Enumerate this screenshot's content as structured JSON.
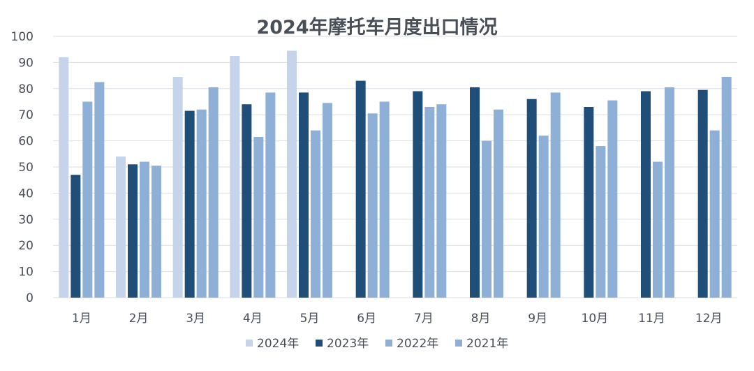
{
  "chart_data": {
    "type": "bar",
    "title": "2024年摩托车月度出口情况",
    "xlabel": "",
    "ylabel": "",
    "ylim": [
      0,
      100
    ],
    "yticks": [
      0,
      10,
      20,
      30,
      40,
      50,
      60,
      70,
      80,
      90,
      100
    ],
    "grid": true,
    "legend_position": "bottom",
    "categories": [
      "1月",
      "2月",
      "3月",
      "4月",
      "5月",
      "6月",
      "7月",
      "8月",
      "9月",
      "10月",
      "11月",
      "12月"
    ],
    "series": [
      {
        "name": "2024年",
        "color": "#c5d4ea",
        "values": [
          92,
          54,
          84.5,
          92.5,
          94.5,
          null,
          null,
          null,
          null,
          null,
          null,
          null
        ]
      },
      {
        "name": "2023年",
        "color": "#1f4e79",
        "values": [
          47,
          51,
          71.5,
          74,
          78.5,
          83,
          79,
          80.5,
          76,
          73,
          79,
          79.5
        ]
      },
      {
        "name": "2022年",
        "color": "#8fb0d6",
        "values": [
          75,
          52,
          72,
          61.5,
          64,
          70.5,
          73,
          60,
          62,
          58,
          52,
          64
        ]
      },
      {
        "name": "2021年",
        "color": "#8fb0d6",
        "values": [
          82.5,
          50.5,
          80.5,
          78.5,
          74.5,
          75,
          74,
          72,
          78.5,
          75.5,
          80.5,
          84.5
        ]
      }
    ]
  }
}
